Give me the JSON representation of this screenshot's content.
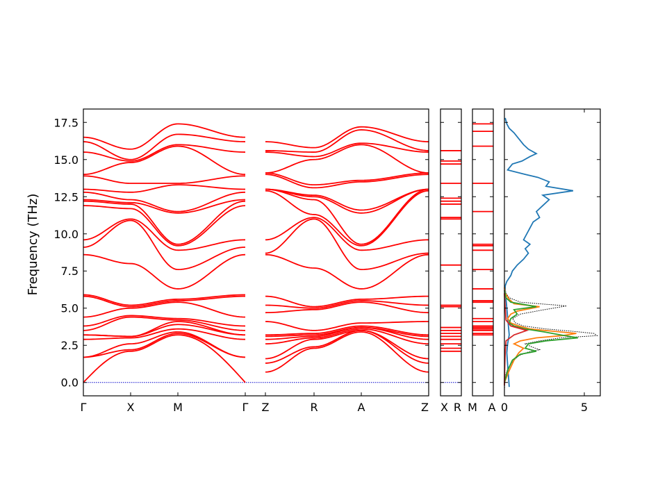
{
  "chart_data": {
    "type": "line",
    "title": "",
    "ylabel": "Frequency (THz)",
    "ylim": [
      -0.9,
      18.4
    ],
    "yticks": [
      "0.0",
      "2.5",
      "5.0",
      "7.5",
      "10.0",
      "12.5",
      "15.0",
      "17.5"
    ],
    "colors": {
      "band": "#ff0000",
      "zero_line": "#0000cc",
      "total_dos": "#000000",
      "dos_blue": "#1f77b4",
      "dos_orange": "#ff7f0e",
      "dos_green": "#2ca02c",
      "dos_red": "#d62728"
    },
    "band_panel": {
      "path_labels": [
        "Γ",
        "X",
        "M",
        "Γ",
        "Z",
        "R",
        "A",
        "Z"
      ],
      "segments": [
        {
          "from": "Γ",
          "to": "X",
          "start": [
            0.0,
            1.7,
            1.7,
            2.9,
            3.2,
            3.2,
            3.5,
            3.8,
            4.4,
            5.8,
            5.9,
            8.6,
            9.1,
            9.6,
            11.9,
            12.2,
            12.3,
            12.8,
            13.0,
            13.9,
            14.0,
            15.5,
            16.2,
            16.5
          ],
          "end": [
            2.1,
            2.2,
            2.6,
            3.0,
            3.1,
            3.1,
            4.4,
            4.5,
            5.0,
            5.1,
            5.2,
            8.0,
            10.9,
            11.0,
            11.7,
            12.0,
            12.1,
            12.3,
            12.8,
            13.4,
            14.8,
            14.9,
            15.0,
            15.7
          ]
        },
        {
          "from": "X",
          "to": "M",
          "start": [
            2.1,
            2.2,
            2.6,
            3.0,
            3.1,
            3.1,
            4.4,
            4.5,
            5.0,
            5.1,
            5.2,
            8.0,
            10.9,
            11.0,
            11.7,
            12.0,
            12.1,
            12.3,
            12.8,
            13.4,
            14.8,
            14.9,
            15.0,
            15.7
          ],
          "end": [
            3.2,
            3.3,
            3.4,
            3.6,
            3.9,
            4.1,
            4.2,
            4.3,
            5.4,
            5.5,
            5.6,
            6.3,
            7.6,
            8.9,
            9.2,
            9.3,
            11.4,
            11.5,
            13.3,
            13.4,
            15.9,
            16.0,
            16.7,
            17.4
          ]
        },
        {
          "from": "M",
          "to": "Γ",
          "start": [
            3.2,
            3.3,
            3.4,
            3.6,
            3.9,
            4.1,
            4.2,
            4.3,
            5.4,
            5.5,
            5.6,
            6.3,
            7.6,
            8.9,
            9.2,
            9.3,
            11.4,
            11.5,
            13.3,
            13.4,
            15.9,
            16.0,
            16.7,
            17.4
          ],
          "end": [
            0.0,
            1.7,
            1.7,
            2.9,
            3.2,
            3.2,
            3.5,
            3.8,
            4.4,
            5.8,
            5.9,
            8.6,
            9.1,
            9.6,
            11.9,
            12.2,
            12.3,
            12.8,
            13.0,
            13.9,
            14.0,
            15.5,
            16.2,
            16.5
          ]
        },
        {
          "from": "Z",
          "to": "R",
          "start": [
            0.7,
            1.3,
            1.6,
            2.6,
            2.9,
            3.1,
            3.2,
            4.1,
            4.7,
            5.2,
            5.8,
            8.6,
            8.7,
            9.6,
            12.9,
            13.0,
            13.0,
            13.0,
            14.0,
            14.1,
            14.1,
            15.5,
            15.6,
            16.2
          ],
          "end": [
            2.3,
            2.4,
            2.9,
            3.0,
            3.1,
            3.2,
            3.3,
            3.5,
            4.9,
            5.0,
            5.1,
            7.7,
            11.0,
            11.1,
            11.3,
            12.3,
            12.5,
            12.6,
            13.1,
            13.3,
            15.0,
            15.2,
            15.5,
            15.8
          ]
        },
        {
          "from": "R",
          "to": "A",
          "start": [
            2.3,
            2.4,
            2.9,
            3.0,
            3.1,
            3.2,
            3.3,
            3.5,
            4.9,
            5.0,
            5.1,
            7.7,
            11.0,
            11.1,
            11.3,
            12.3,
            12.5,
            12.6,
            13.1,
            13.3,
            15.0,
            15.2,
            15.5,
            15.8
          ],
          "end": [
            3.4,
            3.5,
            3.5,
            3.6,
            3.7,
            3.7,
            3.8,
            4.0,
            5.4,
            5.5,
            5.6,
            6.3,
            7.6,
            8.9,
            9.2,
            9.3,
            11.4,
            11.6,
            13.5,
            13.6,
            16.0,
            16.1,
            17.0,
            17.2
          ]
        },
        {
          "from": "A",
          "to": "Z",
          "start": [
            3.4,
            3.5,
            3.5,
            3.6,
            3.7,
            3.7,
            3.8,
            4.0,
            5.4,
            5.5,
            5.6,
            6.3,
            7.6,
            8.9,
            9.2,
            9.3,
            11.4,
            11.6,
            13.5,
            13.6,
            16.0,
            16.1,
            17.0,
            17.2
          ],
          "end": [
            0.7,
            1.3,
            1.6,
            2.6,
            2.9,
            3.1,
            3.2,
            4.1,
            4.7,
            5.2,
            5.8,
            8.6,
            8.7,
            9.6,
            12.9,
            13.0,
            13.0,
            13.0,
            14.0,
            14.1,
            14.1,
            15.5,
            15.6,
            16.2
          ]
        }
      ]
    },
    "xr_panel": {
      "path_labels": [
        "X",
        "R"
      ],
      "levels": [
        2.1,
        2.3,
        2.6,
        2.9,
        3.1,
        3.3,
        3.5,
        3.7,
        5.1,
        5.2,
        7.9,
        11.0,
        11.1,
        12.0,
        12.2,
        12.4,
        13.4,
        14.7,
        14.9,
        15.6
      ]
    },
    "ma_panel": {
      "path_labels": [
        "M",
        "A"
      ],
      "levels": [
        3.2,
        3.3,
        3.5,
        3.6,
        3.7,
        3.8,
        4.1,
        4.3,
        5.4,
        5.5,
        6.3,
        7.6,
        8.9,
        9.2,
        9.3,
        11.5,
        13.4,
        15.9,
        16.9,
        17.4
      ]
    },
    "dos_panel": {
      "xlim": [
        0,
        6.0
      ],
      "xticks": [
        "0",
        "5"
      ],
      "series": [
        {
          "color": "#000000",
          "style": "dotted",
          "points": [
            [
              0,
              -0.5
            ],
            [
              0.05,
              0.4
            ],
            [
              0.2,
              0.9
            ],
            [
              0.5,
              1.4
            ],
            [
              0.9,
              1.8
            ],
            [
              1.5,
              2.05
            ],
            [
              2.2,
              2.2
            ],
            [
              1.7,
              2.4
            ],
            [
              1.3,
              2.6
            ],
            [
              2.2,
              2.8
            ],
            [
              3.5,
              3.0
            ],
            [
              5.8,
              3.15
            ],
            [
              5.6,
              3.3
            ],
            [
              4.2,
              3.45
            ],
            [
              2.6,
              3.6
            ],
            [
              1.2,
              3.8
            ],
            [
              0.7,
              4.0
            ],
            [
              0.5,
              4.3
            ],
            [
              1.0,
              4.6
            ],
            [
              2.5,
              4.9
            ],
            [
              3.9,
              5.15
            ],
            [
              1.0,
              5.4
            ],
            [
              0.3,
              5.7
            ],
            [
              0.1,
              6.0
            ],
            [
              0,
              6.4
            ]
          ]
        },
        {
          "color": "#1f77b4",
          "style": "solid",
          "points": [
            [
              0.3,
              -0.3
            ],
            [
              0.25,
              0.5
            ],
            [
              0.2,
              1.2
            ],
            [
              0.15,
              2.0
            ],
            [
              0.2,
              2.6
            ],
            [
              0.3,
              3.2
            ],
            [
              0.25,
              3.8
            ],
            [
              0.2,
              4.4
            ],
            [
              0.15,
              5.0
            ],
            [
              0.1,
              5.6
            ],
            [
              0.05,
              6.2
            ],
            [
              0.05,
              6.5
            ],
            [
              0.15,
              6.8
            ],
            [
              0.4,
              7.2
            ],
            [
              0.5,
              7.5
            ],
            [
              0.8,
              7.9
            ],
            [
              1.2,
              8.3
            ],
            [
              1.5,
              8.7
            ],
            [
              1.3,
              9.0
            ],
            [
              1.6,
              9.3
            ],
            [
              1.2,
              9.6
            ],
            [
              1.4,
              10.0
            ],
            [
              1.6,
              10.4
            ],
            [
              1.8,
              10.8
            ],
            [
              2.2,
              11.1
            ],
            [
              2.0,
              11.5
            ],
            [
              2.4,
              11.9
            ],
            [
              2.8,
              12.3
            ],
            [
              2.4,
              12.6
            ],
            [
              4.3,
              12.9
            ],
            [
              2.6,
              13.2
            ],
            [
              2.8,
              13.5
            ],
            [
              2.1,
              13.8
            ],
            [
              1.3,
              14.0
            ],
            [
              0.2,
              14.3
            ],
            [
              0.5,
              14.7
            ],
            [
              1.1,
              14.9
            ],
            [
              1.6,
              15.2
            ],
            [
              2.0,
              15.4
            ],
            [
              1.5,
              15.7
            ],
            [
              1.2,
              16.0
            ],
            [
              0.9,
              16.4
            ],
            [
              0.6,
              16.8
            ],
            [
              0.3,
              17.1
            ],
            [
              0.15,
              17.4
            ],
            [
              0.05,
              17.8
            ]
          ]
        },
        {
          "color": "#ff7f0e",
          "style": "solid",
          "points": [
            [
              0,
              0.0
            ],
            [
              0.3,
              0.8
            ],
            [
              0.6,
              1.5
            ],
            [
              0.9,
              2.0
            ],
            [
              1.2,
              2.3
            ],
            [
              0.6,
              2.6
            ],
            [
              1.0,
              2.8
            ],
            [
              2.0,
              3.0
            ],
            [
              3.6,
              3.15
            ],
            [
              4.5,
              3.3
            ],
            [
              3.0,
              3.45
            ],
            [
              1.6,
              3.6
            ],
            [
              0.9,
              3.8
            ],
            [
              0.4,
              4.0
            ],
            [
              0.2,
              4.3
            ],
            [
              0.4,
              4.6
            ],
            [
              0.8,
              4.8
            ],
            [
              2.2,
              5.1
            ],
            [
              0.6,
              5.3
            ],
            [
              0.3,
              5.6
            ],
            [
              0.05,
              6.0
            ],
            [
              0,
              6.4
            ]
          ]
        },
        {
          "color": "#2ca02c",
          "style": "solid",
          "points": [
            [
              0,
              0.0
            ],
            [
              0.2,
              0.8
            ],
            [
              0.5,
              1.5
            ],
            [
              1.0,
              1.9
            ],
            [
              2.0,
              2.1
            ],
            [
              1.3,
              2.3
            ],
            [
              1.5,
              2.6
            ],
            [
              2.6,
              2.8
            ],
            [
              4.6,
              3.0
            ],
            [
              3.5,
              3.2
            ],
            [
              2.5,
              3.4
            ],
            [
              1.3,
              3.6
            ],
            [
              0.6,
              3.8
            ],
            [
              0.3,
              4.0
            ],
            [
              0.4,
              4.3
            ],
            [
              0.8,
              4.6
            ],
            [
              0.6,
              4.9
            ],
            [
              2.0,
              5.1
            ],
            [
              0.4,
              5.4
            ],
            [
              0.1,
              5.7
            ],
            [
              0,
              6.2
            ]
          ]
        },
        {
          "color": "#d62728",
          "style": "solid",
          "points": [
            [
              0,
              -0.2
            ],
            [
              0.02,
              1.0
            ],
            [
              0.05,
              2.0
            ],
            [
              0.1,
              2.8
            ],
            [
              0.6,
              3.2
            ],
            [
              1.4,
              3.5
            ],
            [
              0.4,
              3.8
            ],
            [
              0.1,
              4.2
            ],
            [
              0.05,
              5.0
            ],
            [
              0,
              6.0
            ]
          ]
        }
      ]
    }
  }
}
